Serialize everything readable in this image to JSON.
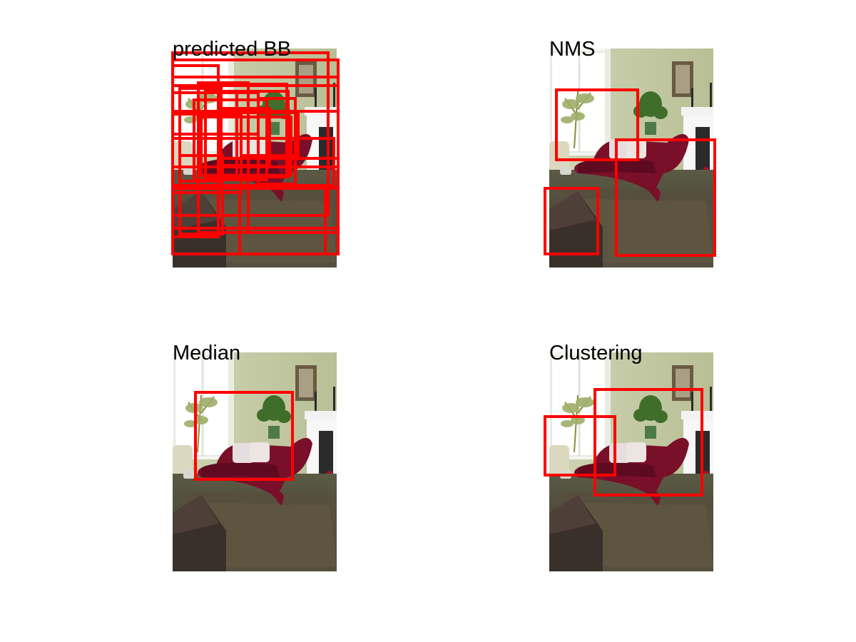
{
  "colors": {
    "box": "#ff0000",
    "background": "#ffffff"
  },
  "scene": "living-room-with-chaise-lounge",
  "panels": [
    {
      "title": "predicted BB",
      "box_count": 22
    },
    {
      "title": "NMS",
      "box_count": 3
    },
    {
      "title": "Median",
      "box_count": 1
    },
    {
      "title": "Clustering",
      "box_count": 2
    }
  ]
}
